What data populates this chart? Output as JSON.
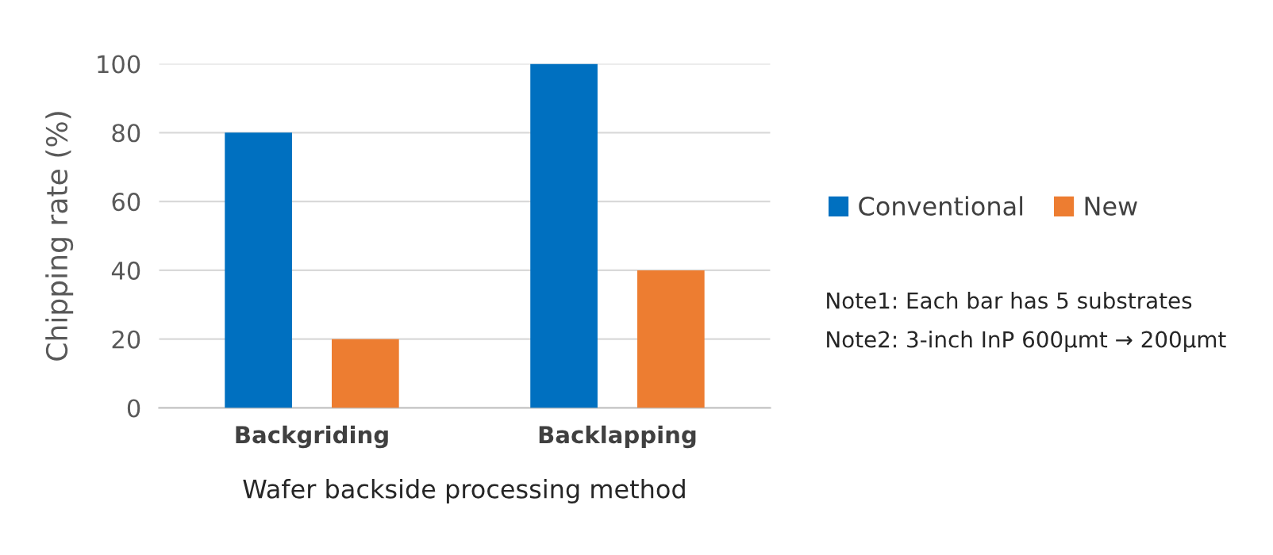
{
  "chart_data": {
    "type": "bar",
    "xlabel": "Wafer backside processing method",
    "ylabel": "Chipping rate (%)",
    "categories": [
      "Backgriding",
      "Backlapping"
    ],
    "series": [
      {
        "name": "Conventional",
        "color": "#0070c0",
        "values": [
          80,
          100
        ]
      },
      {
        "name": "New",
        "color": "#ed7d31",
        "values": [
          20,
          40
        ]
      }
    ],
    "ylim": [
      0,
      100
    ],
    "yticks": [
      0,
      20,
      40,
      60,
      80,
      100
    ],
    "grid": "y",
    "legend": "right",
    "annotations": [
      "Note1: Each bar has 5 substrates",
      "Note2: 3-inch InP 600μmt → 200μmt"
    ]
  }
}
